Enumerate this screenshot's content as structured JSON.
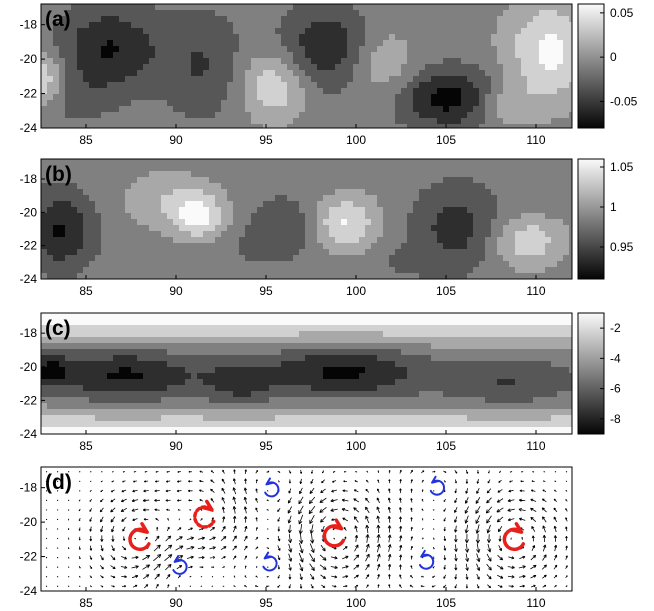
{
  "chart_data": [
    {
      "type": "heatmap",
      "panel_label": "(a)",
      "x_ticks": [
        85,
        90,
        95,
        100,
        105,
        110
      ],
      "y_ticks": [
        -18,
        -20,
        -22,
        -24
      ],
      "xlim": [
        82.5,
        112
      ],
      "ylim": [
        -24,
        -16.8
      ],
      "colorbar": {
        "ticks": [
          0.05,
          0,
          -0.05
        ],
        "tick_labels": [
          "0.05",
          "0",
          "-0.05"
        ],
        "range": [
          -0.08,
          0.06
        ]
      },
      "blobs": [
        {
          "x": 86.3,
          "y": -19.4,
          "value": -0.07,
          "rx": 2.8,
          "ry": 2.4
        },
        {
          "x": 84.2,
          "y": -22.3,
          "value": -0.03,
          "rx": 2.2,
          "ry": 1.5
        },
        {
          "x": 82.6,
          "y": -21.2,
          "value": 0.05,
          "rx": 1.2,
          "ry": 1.6
        },
        {
          "x": 91.5,
          "y": -20.4,
          "value": -0.045,
          "rx": 2.2,
          "ry": 3.0
        },
        {
          "x": 95.4,
          "y": -21.6,
          "value": 0.045,
          "rx": 1.8,
          "ry": 2.0
        },
        {
          "x": 98.3,
          "y": -19.3,
          "value": -0.065,
          "rx": 2.5,
          "ry": 2.3
        },
        {
          "x": 101.5,
          "y": -20.4,
          "value": 0.025,
          "rx": 1.8,
          "ry": 2.2
        },
        {
          "x": 105.4,
          "y": -22.3,
          "value": -0.08,
          "rx": 3.2,
          "ry": 1.7
        },
        {
          "x": 110.8,
          "y": -19.6,
          "value": 0.055,
          "rx": 2.5,
          "ry": 3.0
        },
        {
          "x": 108.2,
          "y": -22.6,
          "value": 0.035,
          "rx": 1.8,
          "ry": 1.3
        }
      ]
    },
    {
      "type": "heatmap",
      "panel_label": "(b)",
      "x_ticks": [
        85,
        90,
        95,
        100,
        105,
        110
      ],
      "y_ticks": [
        -18,
        -20,
        -22,
        -24
      ],
      "xlim": [
        82.5,
        112
      ],
      "ylim": [
        -24,
        -16.8
      ],
      "colorbar": {
        "ticks": [
          1.05,
          1,
          0.95
        ],
        "tick_labels": [
          "1.05",
          "1",
          "0.95"
        ],
        "range": [
          0.91,
          1.06
        ]
      },
      "blobs": [
        {
          "x": 83.6,
          "y": -21.1,
          "value": 0.92,
          "rx": 1.8,
          "ry": 2.3
        },
        {
          "x": 89.6,
          "y": -19.3,
          "value": 1.02,
          "rx": 2.5,
          "ry": 1.7
        },
        {
          "x": 91.3,
          "y": -20.3,
          "value": 1.045,
          "rx": 1.5,
          "ry": 1.4
        },
        {
          "x": 93.5,
          "y": -22.3,
          "value": 0.975,
          "rx": 2.5,
          "ry": 1.3
        },
        {
          "x": 95.9,
          "y": -20.9,
          "value": 0.95,
          "rx": 2.0,
          "ry": 1.8
        },
        {
          "x": 99.4,
          "y": -20.6,
          "value": 1.05,
          "rx": 1.8,
          "ry": 1.7
        },
        {
          "x": 98.0,
          "y": -18.5,
          "value": 0.98,
          "rx": 1.5,
          "ry": 1.3
        },
        {
          "x": 102.8,
          "y": -23.0,
          "value": 0.97,
          "rx": 2.0,
          "ry": 1.0
        },
        {
          "x": 105.6,
          "y": -20.9,
          "value": 0.935,
          "rx": 2.4,
          "ry": 2.5
        },
        {
          "x": 109.5,
          "y": -21.7,
          "value": 1.04,
          "rx": 2.0,
          "ry": 1.6
        },
        {
          "x": 109.8,
          "y": -19.4,
          "value": 0.975,
          "rx": 1.6,
          "ry": 1.2
        }
      ]
    },
    {
      "type": "heatmap",
      "panel_label": "(c)",
      "x_ticks": [
        85,
        90,
        95,
        100,
        105,
        110
      ],
      "y_ticks": [
        -18,
        -20,
        -22,
        -24
      ],
      "xlim": [
        82.5,
        112
      ],
      "ylim": [
        -24,
        -16.8
      ],
      "colorbar": {
        "ticks": [
          -2,
          -4,
          -6,
          -8
        ],
        "tick_labels": [
          "-2",
          "-4",
          "-6",
          "-8"
        ],
        "range": [
          -9,
          -1
        ]
      },
      "base_value": -1.5,
      "band": {
        "center_lat": -20.6,
        "half_width": 3.0,
        "floor_value": -5.2
      },
      "blobs": [
        {
          "x": 87.2,
          "y": -20.5,
          "value": -8.5,
          "rx": 4.0,
          "ry": 1.5
        },
        {
          "x": 99.3,
          "y": -20.3,
          "value": -8.6,
          "rx": 4.2,
          "ry": 1.5
        },
        {
          "x": 83.0,
          "y": -20.2,
          "value": -8.0,
          "rx": 1.2,
          "ry": 1.0
        },
        {
          "x": 93.5,
          "y": -20.9,
          "value": -7.2,
          "rx": 2.0,
          "ry": 1.4
        },
        {
          "x": 108.5,
          "y": -20.9,
          "value": -7.0,
          "rx": 3.5,
          "ry": 1.4
        }
      ]
    },
    {
      "type": "vector_field",
      "panel_label": "(d)",
      "x_ticks": [
        85,
        90,
        95,
        100,
        105,
        110
      ],
      "y_ticks": [
        -18,
        -20,
        -22,
        -24
      ],
      "xlim": [
        82.5,
        112
      ],
      "ylim": [
        -24,
        -16.8
      ],
      "vortices": [
        {
          "x": 88.0,
          "y": -21.0,
          "strength": 3.0,
          "sense": "ccw"
        },
        {
          "x": 98.8,
          "y": -20.8,
          "strength": 3.0,
          "sense": "ccw"
        },
        {
          "x": 108.8,
          "y": -21.0,
          "strength": 3.0,
          "sense": "ccw"
        },
        {
          "x": 91.6,
          "y": -19.7,
          "strength": 1.8,
          "sense": "ccw"
        },
        {
          "x": 90.2,
          "y": -22.6,
          "strength": -1.6,
          "sense": "cw"
        },
        {
          "x": 95.3,
          "y": -18.1,
          "strength": -1.6,
          "sense": "cw"
        },
        {
          "x": 95.2,
          "y": -22.4,
          "strength": -1.6,
          "sense": "cw"
        },
        {
          "x": 104.5,
          "y": -18.0,
          "strength": -1.6,
          "sense": "cw"
        },
        {
          "x": 103.9,
          "y": -22.3,
          "strength": -1.6,
          "sense": "cw"
        }
      ],
      "markers": [
        {
          "x": 88.0,
          "y": -21.0,
          "color": "#e8201c",
          "style": "solid",
          "size": "large"
        },
        {
          "x": 98.8,
          "y": -20.8,
          "color": "#e8201c",
          "style": "solid",
          "size": "large"
        },
        {
          "x": 108.8,
          "y": -21.0,
          "color": "#e8201c",
          "style": "solid",
          "size": "large"
        },
        {
          "x": 91.6,
          "y": -19.7,
          "color": "#e8201c",
          "style": "dashed",
          "size": "large"
        },
        {
          "x": 90.2,
          "y": -22.6,
          "color": "#2233dd",
          "style": "solid",
          "size": "small"
        },
        {
          "x": 95.3,
          "y": -18.1,
          "color": "#2233dd",
          "style": "solid",
          "size": "small"
        },
        {
          "x": 95.2,
          "y": -22.4,
          "color": "#2233dd",
          "style": "solid",
          "size": "small"
        },
        {
          "x": 104.5,
          "y": -18.0,
          "color": "#2233dd",
          "style": "solid",
          "size": "small"
        },
        {
          "x": 103.9,
          "y": -22.3,
          "color": "#2233dd",
          "style": "solid",
          "size": "small"
        }
      ]
    }
  ]
}
